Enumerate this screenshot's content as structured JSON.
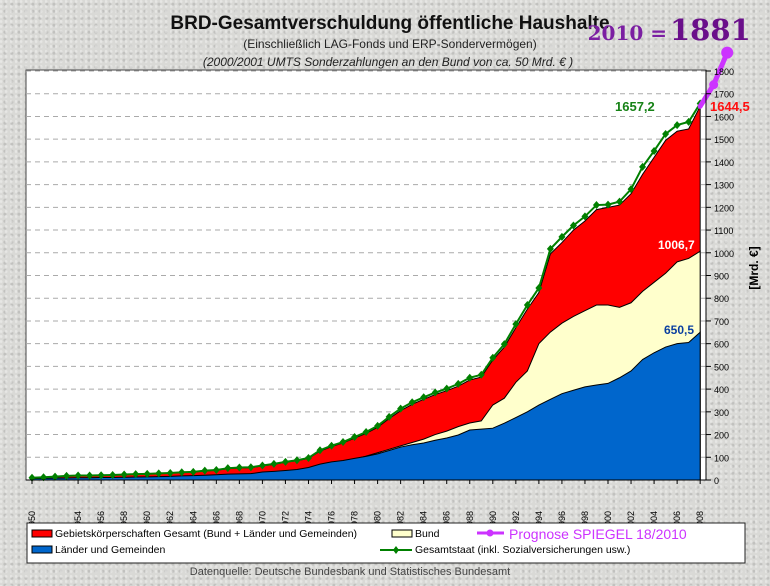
{
  "chart_data": {
    "type": "area",
    "title": "BRD-Gesamtverschuldung öffentliche Haushalte",
    "subtitle": "(Einschließlich LAG-Fonds und ERP-Sondervermögen)",
    "subtitle2": "(2000/2001 UMTS Sonderzahlungen an den Bund von ca. 50 Mrd. € )",
    "source": "Datenquelle: Deutsche Bundesbank und Statistisches Bundesamt",
    "ylabel": "[Mrd. €]",
    "ylim": [
      0,
      1800
    ],
    "y_axis_position": "right",
    "grid": "horizontal dashed",
    "y_ticks": [
      "0",
      "100",
      "200",
      "300",
      "400",
      "500",
      "600",
      "700",
      "800",
      "900",
      "1000",
      "1100",
      "1200",
      "1300",
      "1400",
      "1500",
      "1600",
      "1700",
      "1800"
    ],
    "x_tick_labels": [
      "1950",
      "1954",
      "1956",
      "1958",
      "1960",
      "1962",
      "1964",
      "1966",
      "1968",
      "1970",
      "1972",
      "1974",
      "1976",
      "1978",
      "1980",
      "1982",
      "1984",
      "1986",
      "1988",
      "1990",
      "1992",
      "1994",
      "1996",
      "1998",
      "2000",
      "2002",
      "2004",
      "2006",
      "2008"
    ],
    "years": [
      1950,
      1951,
      1952,
      1953,
      1954,
      1955,
      1956,
      1957,
      1958,
      1959,
      1960,
      1961,
      1962,
      1963,
      1964,
      1965,
      1966,
      1967,
      1968,
      1969,
      1970,
      1971,
      1972,
      1973,
      1974,
      1975,
      1976,
      1977,
      1978,
      1979,
      1980,
      1981,
      1982,
      1983,
      1984,
      1985,
      1986,
      1987,
      1988,
      1989,
      1990,
      1991,
      1992,
      1993,
      1994,
      1995,
      1996,
      1997,
      1998,
      1999,
      2000,
      2001,
      2002,
      2003,
      2004,
      2005,
      2006,
      2007,
      2008
    ],
    "series": [
      {
        "name": "Gebietskörperschaften Gesamt (Bund + Länder und Gemeinden)",
        "color": "#ff0000",
        "kind": "area",
        "values": [
          9,
          11,
          14,
          17,
          19,
          19,
          20,
          21,
          23,
          25,
          26,
          28,
          30,
          33,
          35,
          40,
          43,
          50,
          53,
          54,
          62,
          69,
          78,
          85,
          95,
          127,
          147,
          163,
          184,
          205,
          232,
          270,
          305,
          333,
          355,
          376,
          393,
          413,
          440,
          453,
          528,
          585,
          670,
          752,
          825,
          995,
          1045,
          1100,
          1140,
          1190,
          1200,
          1210,
          1260,
          1345,
          1420,
          1495,
          1535,
          1545,
          1644.5
        ]
      },
      {
        "name": "Bund",
        "color": "#ffffcc",
        "kind": "area",
        "values": [
          4,
          5,
          6,
          7,
          8,
          8,
          9,
          10,
          11,
          11,
          12,
          13,
          14,
          15,
          17,
          19,
          21,
          24,
          26,
          27,
          29,
          32,
          36,
          40,
          45,
          57,
          70,
          80,
          92,
          105,
          120,
          135,
          150,
          165,
          180,
          200,
          215,
          235,
          251,
          260,
          330,
          360,
          430,
          480,
          600,
          651,
          690,
          720,
          745,
          770,
          770,
          760,
          780,
          830,
          870,
          910,
          960,
          975,
          1006.7
        ]
      },
      {
        "name": "Länder und Gemeinden",
        "color": "#0066cc",
        "kind": "area",
        "values": [
          6,
          7,
          8,
          9,
          10,
          10,
          11,
          11,
          12,
          13,
          14,
          15,
          16,
          18,
          19,
          21,
          23,
          26,
          27,
          28,
          35,
          38,
          42,
          46,
          55,
          70,
          80,
          86,
          95,
          104,
          115,
          130,
          145,
          155,
          163,
          175,
          185,
          198,
          220,
          224,
          228,
          250,
          275,
          300,
          330,
          355,
          380,
          395,
          410,
          418,
          425,
          450,
          480,
          530,
          560,
          585,
          600,
          605,
          650.5
        ]
      },
      {
        "name": "Gesamtstaat (inkl. Sozialversicherungen usw.)",
        "color": "#008000",
        "kind": "line",
        "values": [
          10,
          12,
          15,
          18,
          20,
          20,
          21,
          22,
          24,
          26,
          27,
          29,
          31,
          34,
          36,
          41,
          44,
          52,
          55,
          56,
          64,
          71,
          80,
          87,
          97,
          131,
          151,
          167,
          189,
          211,
          238,
          278,
          314,
          342,
          364,
          385,
          402,
          423,
          450,
          463,
          538,
          598,
          686,
          770,
          845,
          1017,
          1070,
          1120,
          1160,
          1210,
          1212,
          1225,
          1280,
          1378,
          1448,
          1523,
          1562,
          1576,
          1657.2
        ]
      },
      {
        "name": "Prognose SPIEGEL 18/2010",
        "color": "#cc33ff",
        "kind": "line",
        "years": [
          2008,
          2009,
          2010
        ],
        "values": [
          1644.5,
          1740,
          1881
        ]
      }
    ],
    "annotations": {
      "gesamt_2008": "1657,2",
      "gebiets_2008": "1644,5",
      "bund_2008": "1006,7",
      "laender_2008": "650,5",
      "forecast_prefix": "2010 =",
      "forecast_value": "1881"
    },
    "legend_position": "bottom"
  }
}
